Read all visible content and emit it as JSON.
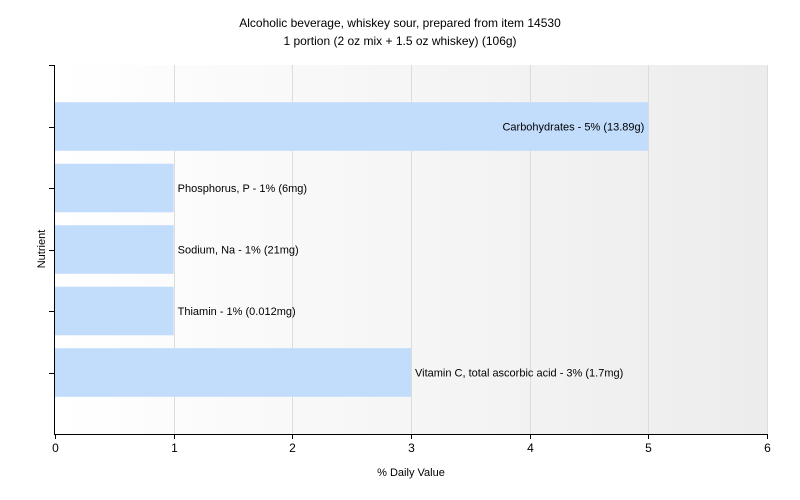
{
  "chart_data": {
    "type": "bar",
    "orientation": "horizontal",
    "title": "Alcoholic beverage, whiskey sour, prepared from item 14530",
    "subtitle": "1 portion (2 oz mix + 1.5 oz whiskey) (106g)",
    "xlabel": "% Daily Value",
    "ylabel": "Nutrient",
    "xlim": [
      0,
      6
    ],
    "xticks": [
      "0",
      "1",
      "2",
      "3",
      "4",
      "5",
      "6"
    ],
    "grid": true,
    "bar_color": "#c2dcfc",
    "categories": [
      "Carbohydrates",
      "Phosphorus, P",
      "Sodium, Na",
      "Thiamin",
      "Vitamin C, total ascorbic acid"
    ],
    "values": [
      5,
      1,
      1,
      1,
      3
    ],
    "labels": [
      "Carbohydrates - 5% (13.89g)",
      "Phosphorus, P - 1% (6mg)",
      "Sodium, Na - 1% (21mg)",
      "Thiamin - 1% (0.012mg)",
      "Vitamin C, total ascorbic acid - 3% (1.7mg)"
    ]
  }
}
